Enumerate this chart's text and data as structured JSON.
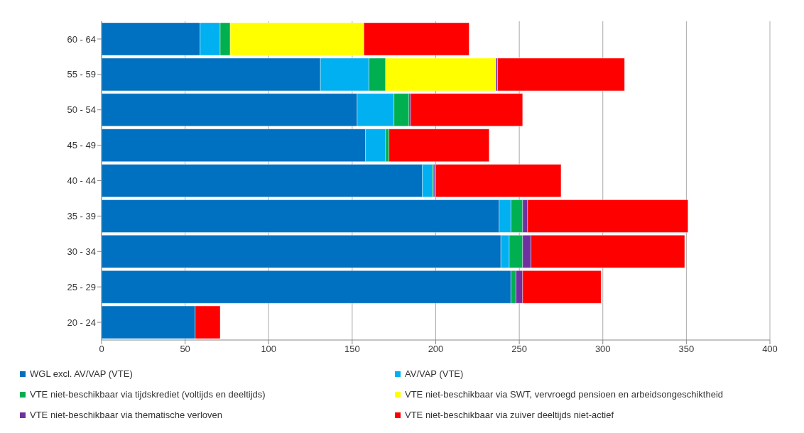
{
  "chart_data": {
    "type": "bar",
    "orientation": "horizontal",
    "stacked": true,
    "categories": [
      "60 - 64",
      "55 - 59",
      "50 - 54",
      "45 - 49",
      "40 - 44",
      "35 - 39",
      "30 - 34",
      "25 - 29",
      "20 - 24"
    ],
    "series": [
      {
        "name": "WGL excl. AV/VAP (VTE)",
        "color": "#0070c0",
        "values": [
          59,
          131,
          153,
          158,
          192,
          238,
          239,
          245,
          56
        ]
      },
      {
        "name": "AV/VAP (VTE)",
        "color": "#00b0f0",
        "values": [
          12,
          29,
          22,
          12,
          6,
          7,
          5,
          0,
          0
        ]
      },
      {
        "name": "VTE niet-beschikbaar via tijdskrediet (voltijds en deeltijds)",
        "color": "#00b050",
        "values": [
          6,
          10,
          9,
          2,
          1,
          7,
          8,
          3,
          0
        ]
      },
      {
        "name": "VTE niet-beschikbaar via SWT, vervroegd pensioen en arbeidsongeschiktheid",
        "color": "#ffff00",
        "values": [
          80,
          66,
          0,
          0,
          0,
          0,
          0,
          0,
          0
        ]
      },
      {
        "name": "VTE niet-beschikbaar via thematische verloven",
        "color": "#7030a0",
        "values": [
          0,
          1,
          1,
          0,
          1,
          3,
          5,
          4,
          0
        ]
      },
      {
        "name": "VTE niet-beschikbaar via zuiver deeltijds niet-actief",
        "color": "#ff0000",
        "values": [
          63,
          76,
          67,
          60,
          75,
          96,
          92,
          47,
          15
        ]
      }
    ],
    "xlim": [
      0,
      400
    ],
    "xticks": [
      0,
      50,
      100,
      150,
      200,
      250,
      300,
      350,
      400
    ],
    "grid": "x",
    "legend": "bottom"
  }
}
